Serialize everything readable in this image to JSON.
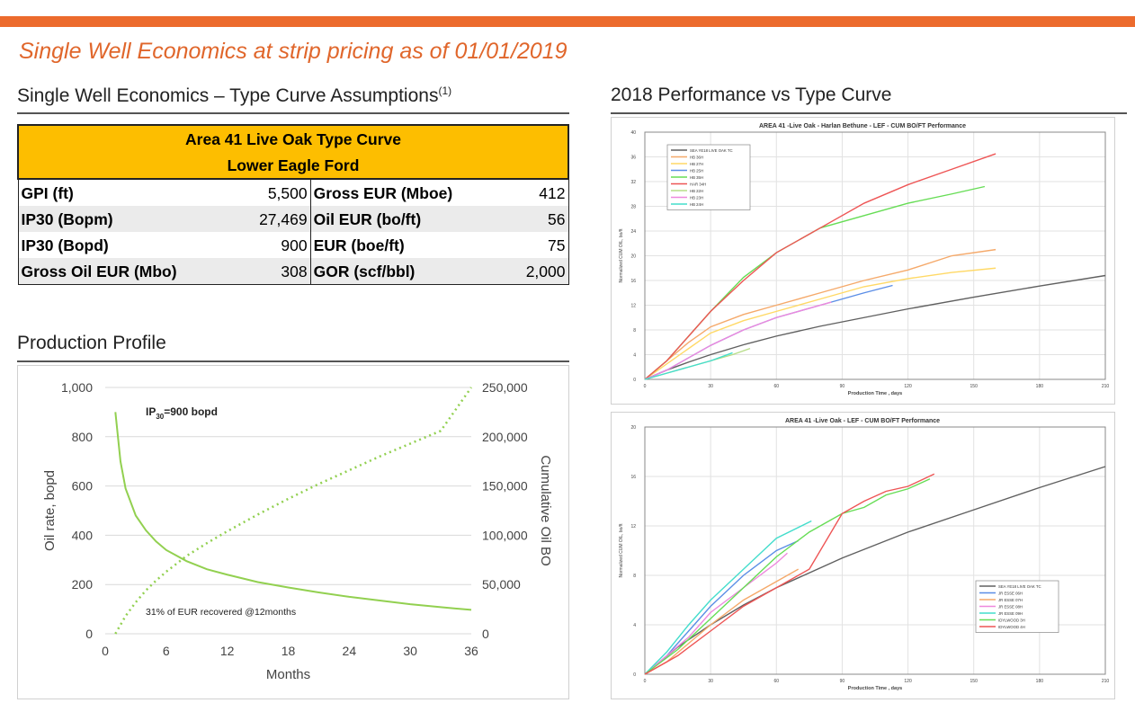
{
  "header": {
    "title": "Single Well Economics at strip pricing as of 01/01/2019",
    "accent_color": "#ec6b2d"
  },
  "left": {
    "assumptions_title": "Single Well Economics – Type Curve Assumptions",
    "assumptions_sup": "(1)",
    "table": {
      "header_line1": "Area 41 Live Oak Type Curve",
      "header_line2": "Lower Eagle Ford",
      "header_color": "#fdbe00",
      "rows": [
        {
          "l1": "GPI (ft)",
          "v1": "5,500",
          "l2": "Gross EUR  (Mboe)",
          "v2": "412"
        },
        {
          "l1": "IP30 (Bopm)",
          "v1": "27,469",
          "l2": "Oil EUR (bo/ft)",
          "v2": "56"
        },
        {
          "l1": "IP30 (Bopd)",
          "v1": "900",
          "l2": "EUR (boe/ft)",
          "v2": "75"
        },
        {
          "l1": "Gross Oil EUR (Mbo)",
          "v1": "308",
          "l2": "GOR (scf/bbl)",
          "v2": "2,000"
        }
      ]
    },
    "profile_title": "Production Profile"
  },
  "right": {
    "performance_title": "2018 Performance vs Type Curve"
  },
  "chart_data": [
    {
      "type": "line",
      "title": "",
      "xlabel": "Months",
      "ylabel": "Oil rate, bopd",
      "y2label": "Cumulative Oil BO",
      "xlim": [
        0,
        36
      ],
      "xticks": [
        "0",
        "6",
        "12",
        "18",
        "24",
        "30",
        "36"
      ],
      "ylim": [
        0,
        1000
      ],
      "yticks": [
        "0",
        "200",
        "400",
        "600",
        "800",
        "1,000"
      ],
      "y2lim": [
        0,
        250000
      ],
      "y2ticks": [
        "0",
        "50,000",
        "100,000",
        "150,000",
        "200,000",
        "250,000"
      ],
      "annotation_ip_pre": "IP",
      "annotation_ip_sub": "30",
      "annotation_ip_post": "=900 bopd",
      "annotation_eur": "31% of EUR recovered @12months",
      "series": [
        {
          "axis": "left",
          "style": "solid",
          "color": "#92d050",
          "x": [
            1,
            1.5,
            2,
            3,
            4,
            5,
            6,
            8,
            10,
            12,
            15,
            18,
            21,
            24,
            27,
            30,
            33,
            36
          ],
          "y": [
            900,
            700,
            590,
            480,
            420,
            375,
            340,
            295,
            262,
            240,
            210,
            188,
            168,
            150,
            135,
            120,
            108,
            97
          ]
        },
        {
          "axis": "right",
          "style": "dotted",
          "color": "#92d050",
          "x": [
            1,
            2,
            3,
            4,
            5,
            6,
            8,
            10,
            12,
            15,
            18,
            21,
            24,
            27,
            30,
            33,
            36
          ],
          "y": [
            0,
            18000,
            32000,
            44000,
            54000,
            63000,
            79000,
            92000,
            104000,
            121000,
            137000,
            152000,
            166000,
            180000,
            193000,
            206000,
            250000
          ]
        }
      ]
    },
    {
      "type": "line",
      "title": "AREA 41 -Live Oak - Harlan Bethune - LEF - CUM BO/FT Performance",
      "xlabel": "Production Time , days",
      "ylabel": "Normalized CUM OIL, bo/ft",
      "xlim": [
        0,
        210
      ],
      "xticks": [
        "0",
        "30",
        "60",
        "90",
        "120",
        "150",
        "180",
        "210"
      ],
      "ylim": [
        0,
        40
      ],
      "yticks": [
        "0",
        "4",
        "8",
        "12",
        "16",
        "20",
        "24",
        "28",
        "32",
        "36",
        "40"
      ],
      "legend_position": "top-left",
      "series": [
        {
          "name": "SEA YE18 LIVE OAK TC",
          "color": "#606060",
          "x": [
            0,
            10,
            20,
            30,
            45,
            60,
            80,
            100,
            120,
            150,
            180,
            210
          ],
          "y": [
            0,
            1.5,
            2.8,
            4,
            5.6,
            7,
            8.6,
            10,
            11.4,
            13.3,
            15.1,
            16.8
          ]
        },
        {
          "name": "HB 36H",
          "color": "#f5a96a",
          "x": [
            0,
            10,
            20,
            30,
            45,
            60,
            80,
            100,
            120,
            140,
            160
          ],
          "y": [
            0,
            3,
            6,
            8.5,
            10.5,
            12,
            14,
            16,
            17.7,
            20,
            21
          ]
        },
        {
          "name": "HB 27H",
          "color": "#ffd966",
          "x": [
            0,
            10,
            20,
            30,
            45,
            60,
            80,
            100,
            120,
            140,
            160
          ],
          "y": [
            0,
            2.5,
            5,
            7.5,
            9.5,
            11,
            13,
            15,
            16.3,
            17.3,
            18
          ]
        },
        {
          "name": "HB 25H",
          "color": "#5b8ee6",
          "x": [
            0,
            10,
            20,
            30,
            45,
            60,
            80,
            100,
            113
          ],
          "y": [
            0,
            1.5,
            3.5,
            5.5,
            8,
            10,
            12,
            14,
            15.2
          ]
        },
        {
          "name": "HB 35H",
          "color": "#66dd55",
          "x": [
            0,
            10,
            20,
            30,
            45,
            60,
            80,
            100,
            120,
            140,
            155
          ],
          "y": [
            0,
            3,
            7,
            11,
            16.5,
            20.5,
            24.5,
            26.5,
            28.5,
            30,
            31.2
          ]
        },
        {
          "name": "HAR 34H",
          "color": "#ee5555",
          "x": [
            0,
            10,
            20,
            30,
            45,
            60,
            80,
            100,
            120,
            140,
            160
          ],
          "y": [
            0,
            3,
            7,
            11,
            16,
            20.5,
            24.5,
            28.5,
            31.5,
            34,
            36.5
          ]
        },
        {
          "name": "HB 22H",
          "color": "#b7dd88",
          "x": [
            0,
            10,
            20,
            30,
            40,
            48
          ],
          "y": [
            0,
            1,
            2,
            3,
            4,
            5
          ]
        },
        {
          "name": "HB 23H",
          "color": "#ee88dd",
          "x": [
            0,
            10,
            20,
            30,
            45,
            60,
            75,
            85
          ],
          "y": [
            0,
            1.5,
            3.5,
            5.5,
            8,
            10,
            11.5,
            12.5
          ]
        },
        {
          "name": "HB 24H",
          "color": "#44ddcc",
          "x": [
            0,
            10,
            20,
            30,
            40
          ],
          "y": [
            0,
            1,
            2,
            3,
            4.3
          ]
        }
      ]
    },
    {
      "type": "line",
      "title": "AREA 41 -Live Oak - LEF - CUM BO/FT Performance",
      "xlabel": "Production Time , days",
      "ylabel": "Normalized CUM OIL, bo/ft",
      "xlim": [
        0,
        210
      ],
      "xticks": [
        "0",
        "30",
        "60",
        "90",
        "120",
        "150",
        "180",
        "210"
      ],
      "ylim": [
        0,
        20
      ],
      "yticks": [
        "0",
        "4",
        "8",
        "12",
        "16",
        "20"
      ],
      "legend_position": "bottom-right",
      "series": [
        {
          "name": "SEA YE18 LIVE OAK TC",
          "color": "#606060",
          "x": [
            0,
            15,
            30,
            45,
            60,
            90,
            120,
            150,
            180,
            210
          ],
          "y": [
            0,
            2.2,
            4,
            5.6,
            7,
            9.4,
            11.5,
            13.3,
            15.1,
            16.8
          ]
        },
        {
          "name": "JR ESSE 06H",
          "color": "#5b8ee6",
          "x": [
            0,
            10,
            20,
            30,
            45,
            60,
            70
          ],
          "y": [
            0,
            1.5,
            3.5,
            5.5,
            8,
            10,
            10.8
          ]
        },
        {
          "name": "JR ESSE 07H",
          "color": "#f5a96a",
          "x": [
            0,
            10,
            20,
            30,
            45,
            60,
            70
          ],
          "y": [
            0,
            1,
            2.5,
            4,
            6,
            7.5,
            8.5
          ]
        },
        {
          "name": "JR ESSE 08H",
          "color": "#ee88dd",
          "x": [
            0,
            10,
            20,
            30,
            45,
            60,
            65
          ],
          "y": [
            0,
            1.5,
            3,
            5,
            7,
            9,
            9.8
          ]
        },
        {
          "name": "JR ESSE 09H",
          "color": "#44ddcc",
          "x": [
            0,
            10,
            20,
            30,
            45,
            60,
            76
          ],
          "y": [
            0,
            1.8,
            4,
            6,
            8.5,
            11,
            12.4
          ]
        },
        {
          "name": "IDYLWOOD 3H",
          "color": "#66dd55",
          "x": [
            0,
            15,
            30,
            45,
            60,
            75,
            90,
            100,
            110,
            120,
            130
          ],
          "y": [
            0,
            2,
            4.5,
            7,
            9.5,
            11.5,
            13,
            13.5,
            14.5,
            15,
            15.8
          ]
        },
        {
          "name": "IDYLWOOD 4H",
          "color": "#ee5555",
          "x": [
            0,
            15,
            30,
            45,
            60,
            75,
            90,
            100,
            110,
            120,
            132
          ],
          "y": [
            0,
            1.5,
            3.5,
            5.5,
            7,
            8.5,
            13,
            14,
            14.8,
            15.2,
            16.2
          ]
        }
      ]
    }
  ]
}
